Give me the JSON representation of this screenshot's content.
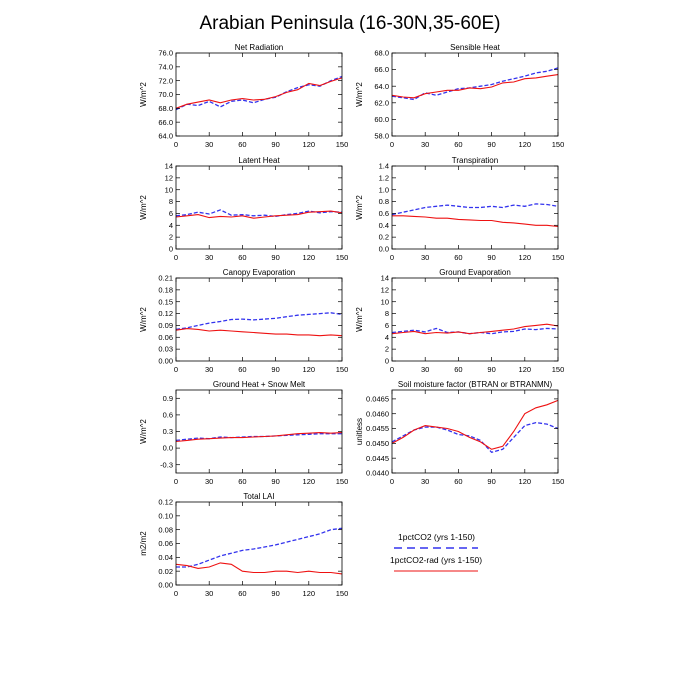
{
  "figure": {
    "title": "Arabian Peninsula (16-30N,35-60E)",
    "legend": [
      {
        "label": "1pctCO2 (yrs 1-150)",
        "color": "#3333ee",
        "dash": "dashed"
      },
      {
        "label": "1pctCO2-rad (yrs 1-150)",
        "color": "#ee1111",
        "dash": "solid"
      }
    ]
  },
  "chart_data": [
    {
      "type": "line",
      "title": "Net Radiation",
      "ylabel": "W/m^2",
      "xlim": [
        0,
        150
      ],
      "ylim": [
        64,
        76
      ],
      "xticks": [
        0,
        30,
        60,
        90,
        120,
        150
      ],
      "xticklabels": [
        "0",
        "30",
        "60",
        "90",
        "120",
        "150"
      ],
      "yticks": [
        64,
        66,
        68,
        70,
        72,
        74,
        76
      ],
      "yticklabels": [
        "64.0",
        "66.0",
        "68.0",
        "70.0",
        "72.0",
        "74.0",
        "76.0"
      ],
      "series": [
        {
          "name": "1pctCO2 (yrs 1-150)",
          "color": "#3333ee",
          "dash": "dashed",
          "x": [
            0,
            10,
            20,
            30,
            40,
            50,
            60,
            70,
            80,
            90,
            100,
            110,
            120,
            130,
            140,
            150
          ],
          "y": [
            67.8,
            68.6,
            68.4,
            69.0,
            68.2,
            69.0,
            69.2,
            68.8,
            69.3,
            69.6,
            70.4,
            71.0,
            71.4,
            71.2,
            72.0,
            72.6
          ]
        },
        {
          "name": "1pctCO2-rad (yrs 1-150)",
          "color": "#ee1111",
          "dash": "solid",
          "x": [
            0,
            10,
            20,
            30,
            40,
            50,
            60,
            70,
            80,
            90,
            100,
            110,
            120,
            130,
            140,
            150
          ],
          "y": [
            68.0,
            68.6,
            68.9,
            69.2,
            68.8,
            69.2,
            69.4,
            69.2,
            69.3,
            69.7,
            70.3,
            70.7,
            71.6,
            71.3,
            71.9,
            72.4
          ]
        }
      ]
    },
    {
      "type": "line",
      "title": "Sensible Heat",
      "ylabel": "W/m^2",
      "xlim": [
        0,
        150
      ],
      "ylim": [
        58,
        68
      ],
      "xticks": [
        0,
        30,
        60,
        90,
        120,
        150
      ],
      "xticklabels": [
        "0",
        "30",
        "60",
        "90",
        "120",
        "150"
      ],
      "yticks": [
        58,
        60,
        62,
        64,
        66,
        68
      ],
      "yticklabels": [
        "58.0",
        "60.0",
        "62.0",
        "64.0",
        "66.0",
        "68.0"
      ],
      "series": [
        {
          "name": "1pctCO2 (yrs 1-150)",
          "color": "#3333ee",
          "dash": "dashed",
          "x": [
            0,
            10,
            20,
            30,
            40,
            50,
            60,
            70,
            80,
            90,
            100,
            110,
            120,
            130,
            140,
            150
          ],
          "y": [
            62.8,
            62.6,
            62.4,
            63.2,
            62.9,
            63.3,
            63.7,
            63.8,
            64.0,
            64.2,
            64.6,
            64.9,
            65.2,
            65.6,
            65.8,
            66.2
          ]
        },
        {
          "name": "1pctCO2-rad (yrs 1-150)",
          "color": "#ee1111",
          "dash": "solid",
          "x": [
            0,
            10,
            20,
            30,
            40,
            50,
            60,
            70,
            80,
            90,
            100,
            110,
            120,
            130,
            140,
            150
          ],
          "y": [
            62.9,
            62.7,
            62.6,
            63.1,
            63.3,
            63.5,
            63.5,
            63.8,
            63.7,
            63.9,
            64.4,
            64.5,
            64.9,
            65.0,
            65.2,
            65.4
          ]
        }
      ]
    },
    {
      "type": "line",
      "title": "Latent Heat",
      "ylabel": "W/m^2",
      "xlim": [
        0,
        150
      ],
      "ylim": [
        0,
        14
      ],
      "xticks": [
        0,
        30,
        60,
        90,
        120,
        150
      ],
      "xticklabels": [
        "0",
        "30",
        "60",
        "90",
        "120",
        "150"
      ],
      "yticks": [
        0,
        2,
        4,
        6,
        8,
        10,
        12,
        14
      ],
      "yticklabels": [
        "0",
        "2",
        "4",
        "6",
        "8",
        "10",
        "12",
        "14"
      ],
      "series": [
        {
          "name": "1pctCO2 (yrs 1-150)",
          "color": "#3333ee",
          "dash": "dashed",
          "x": [
            0,
            10,
            20,
            30,
            40,
            50,
            60,
            70,
            80,
            90,
            100,
            110,
            120,
            130,
            140,
            150
          ],
          "y": [
            5.6,
            5.8,
            6.2,
            5.9,
            6.6,
            5.7,
            5.8,
            5.6,
            5.7,
            5.5,
            5.8,
            6.0,
            6.4,
            6.1,
            6.3,
            6.2
          ]
        },
        {
          "name": "1pctCO2-rad (yrs 1-150)",
          "color": "#ee1111",
          "dash": "solid",
          "x": [
            0,
            10,
            20,
            30,
            40,
            50,
            60,
            70,
            80,
            90,
            100,
            110,
            120,
            130,
            140,
            150
          ],
          "y": [
            5.4,
            5.6,
            5.8,
            5.3,
            5.5,
            5.4,
            5.6,
            5.2,
            5.4,
            5.6,
            5.7,
            5.8,
            6.2,
            6.3,
            6.4,
            6.1
          ]
        }
      ]
    },
    {
      "type": "line",
      "title": "Transpiration",
      "ylabel": "W/m^2",
      "xlim": [
        0,
        150
      ],
      "ylim": [
        0,
        1.4
      ],
      "xticks": [
        0,
        30,
        60,
        90,
        120,
        150
      ],
      "xticklabels": [
        "0",
        "30",
        "60",
        "90",
        "120",
        "150"
      ],
      "yticks": [
        0,
        0.2,
        0.4,
        0.6,
        0.8,
        1.0,
        1.2,
        1.4
      ],
      "yticklabels": [
        "0.0",
        "0.2",
        "0.4",
        "0.6",
        "0.8",
        "1.0",
        "1.2",
        "1.4"
      ],
      "series": [
        {
          "name": "1pctCO2 (yrs 1-150)",
          "color": "#3333ee",
          "dash": "dashed",
          "x": [
            0,
            10,
            20,
            30,
            40,
            50,
            60,
            70,
            80,
            90,
            100,
            110,
            120,
            130,
            140,
            150
          ],
          "y": [
            0.58,
            0.62,
            0.66,
            0.7,
            0.72,
            0.74,
            0.72,
            0.7,
            0.7,
            0.72,
            0.7,
            0.74,
            0.72,
            0.76,
            0.75,
            0.72
          ]
        },
        {
          "name": "1pctCO2-rad (yrs 1-150)",
          "color": "#ee1111",
          "dash": "solid",
          "x": [
            0,
            10,
            20,
            30,
            40,
            50,
            60,
            70,
            80,
            90,
            100,
            110,
            120,
            130,
            140,
            150
          ],
          "y": [
            0.56,
            0.56,
            0.55,
            0.54,
            0.52,
            0.52,
            0.5,
            0.49,
            0.48,
            0.48,
            0.45,
            0.44,
            0.42,
            0.4,
            0.4,
            0.38
          ]
        }
      ]
    },
    {
      "type": "line",
      "title": "Canopy Evaporation",
      "ylabel": "W/m^2",
      "xlim": [
        0,
        150
      ],
      "ylim": [
        0,
        0.21
      ],
      "xticks": [
        0,
        30,
        60,
        90,
        120,
        150
      ],
      "xticklabels": [
        "0",
        "30",
        "60",
        "90",
        "120",
        "150"
      ],
      "yticks": [
        0,
        0.03,
        0.06,
        0.09,
        0.12,
        0.15,
        0.18,
        0.21
      ],
      "yticklabels": [
        "0.00",
        "0.03",
        "0.06",
        "0.09",
        "0.12",
        "0.15",
        "0.18",
        "0.21"
      ],
      "series": [
        {
          "name": "1pctCO2 (yrs 1-150)",
          "color": "#3333ee",
          "dash": "dashed",
          "x": [
            0,
            10,
            20,
            30,
            40,
            50,
            60,
            70,
            80,
            90,
            100,
            110,
            120,
            130,
            140,
            150
          ],
          "y": [
            0.08,
            0.084,
            0.09,
            0.096,
            0.1,
            0.105,
            0.106,
            0.104,
            0.106,
            0.108,
            0.112,
            0.116,
            0.118,
            0.12,
            0.122,
            0.118
          ]
        },
        {
          "name": "1pctCO2-rad (yrs 1-150)",
          "color": "#ee1111",
          "dash": "solid",
          "x": [
            0,
            10,
            20,
            30,
            40,
            50,
            60,
            70,
            80,
            90,
            100,
            110,
            120,
            130,
            140,
            150
          ],
          "y": [
            0.078,
            0.082,
            0.08,
            0.076,
            0.078,
            0.076,
            0.074,
            0.072,
            0.07,
            0.068,
            0.068,
            0.066,
            0.066,
            0.064,
            0.066,
            0.064
          ]
        }
      ]
    },
    {
      "type": "line",
      "title": "Ground Evaporation",
      "ylabel": "W/m^2",
      "xlim": [
        0,
        150
      ],
      "ylim": [
        0,
        14
      ],
      "xticks": [
        0,
        30,
        60,
        90,
        120,
        150
      ],
      "xticklabels": [
        "0",
        "30",
        "60",
        "90",
        "120",
        "150"
      ],
      "yticks": [
        0,
        2,
        4,
        6,
        8,
        10,
        12,
        14
      ],
      "yticklabels": [
        "0",
        "2",
        "4",
        "6",
        "8",
        "10",
        "12",
        "14"
      ],
      "series": [
        {
          "name": "1pctCO2 (yrs 1-150)",
          "color": "#3333ee",
          "dash": "dashed",
          "x": [
            0,
            10,
            20,
            30,
            40,
            50,
            60,
            70,
            80,
            90,
            100,
            110,
            120,
            130,
            140,
            150
          ],
          "y": [
            4.8,
            5.0,
            5.2,
            4.9,
            5.5,
            4.8,
            4.9,
            4.6,
            4.8,
            4.6,
            4.9,
            5.0,
            5.4,
            5.3,
            5.5,
            5.4
          ]
        },
        {
          "name": "1pctCO2-rad (yrs 1-150)",
          "color": "#ee1111",
          "dash": "solid",
          "x": [
            0,
            10,
            20,
            30,
            40,
            50,
            60,
            70,
            80,
            90,
            100,
            110,
            120,
            130,
            140,
            150
          ],
          "y": [
            4.6,
            4.8,
            5.0,
            4.6,
            4.8,
            4.7,
            4.9,
            4.6,
            4.8,
            5.0,
            5.2,
            5.4,
            5.8,
            6.0,
            6.2,
            5.9
          ]
        }
      ]
    },
    {
      "type": "line",
      "title": "Ground Heat + Snow Melt",
      "ylabel": "W/m^2",
      "xlim": [
        0,
        150
      ],
      "ylim": [
        -0.45,
        1.05
      ],
      "xticks": [
        0,
        30,
        60,
        90,
        120,
        150
      ],
      "xticklabels": [
        "0",
        "30",
        "60",
        "90",
        "120",
        "150"
      ],
      "yticks": [
        -0.3,
        0,
        0.3,
        0.6,
        0.9
      ],
      "yticklabels": [
        "-0.3",
        "0.0",
        "0.3",
        "0.6",
        "0.9"
      ],
      "series": [
        {
          "name": "1pctCO2 (yrs 1-150)",
          "color": "#3333ee",
          "dash": "dashed",
          "x": [
            0,
            10,
            20,
            30,
            40,
            50,
            60,
            70,
            80,
            90,
            100,
            110,
            120,
            130,
            140,
            150
          ],
          "y": [
            0.14,
            0.16,
            0.18,
            0.17,
            0.2,
            0.19,
            0.2,
            0.21,
            0.21,
            0.22,
            0.23,
            0.24,
            0.25,
            0.26,
            0.26,
            0.26
          ]
        },
        {
          "name": "1pctCO2-rad (yrs 1-150)",
          "color": "#ee1111",
          "dash": "solid",
          "x": [
            0,
            10,
            20,
            30,
            40,
            50,
            60,
            70,
            80,
            90,
            100,
            110,
            120,
            130,
            140,
            150
          ],
          "y": [
            0.12,
            0.14,
            0.16,
            0.17,
            0.18,
            0.19,
            0.19,
            0.2,
            0.21,
            0.22,
            0.24,
            0.26,
            0.27,
            0.28,
            0.27,
            0.28
          ]
        }
      ]
    },
    {
      "type": "line",
      "title": "Soil moisture factor (BTRAN or BTRANMN)",
      "ylabel": "unitless",
      "xlim": [
        0,
        150
      ],
      "ylim": [
        0.044,
        0.0468
      ],
      "xticks": [
        0,
        30,
        60,
        90,
        120,
        150
      ],
      "xticklabels": [
        "0",
        "30",
        "60",
        "90",
        "120",
        "150"
      ],
      "yticks": [
        0.044,
        0.0445,
        0.045,
        0.0455,
        0.046,
        0.0465
      ],
      "yticklabels": [
        "0.0440",
        "0.0445",
        "0.0450",
        "0.0455",
        "0.0460",
        "0.0465"
      ],
      "series": [
        {
          "name": "1pctCO2 (yrs 1-150)",
          "color": "#3333ee",
          "dash": "dashed",
          "x": [
            0,
            10,
            20,
            30,
            40,
            50,
            60,
            70,
            80,
            90,
            100,
            110,
            120,
            130,
            140,
            150
          ],
          "y": [
            0.04505,
            0.04525,
            0.04545,
            0.04555,
            0.04555,
            0.04545,
            0.0453,
            0.04525,
            0.0451,
            0.0447,
            0.0448,
            0.0452,
            0.0456,
            0.0457,
            0.04565,
            0.0455
          ]
        },
        {
          "name": "1pctCO2-rad (yrs 1-150)",
          "color": "#ee1111",
          "dash": "solid",
          "x": [
            0,
            10,
            20,
            30,
            40,
            50,
            60,
            70,
            80,
            90,
            100,
            110,
            120,
            130,
            140,
            150
          ],
          "y": [
            0.045,
            0.0452,
            0.04545,
            0.0456,
            0.04555,
            0.0455,
            0.0454,
            0.0452,
            0.04505,
            0.0448,
            0.0449,
            0.0454,
            0.046,
            0.0462,
            0.0463,
            0.04645
          ]
        }
      ]
    },
    {
      "type": "line",
      "title": "Total LAI",
      "ylabel": "m2/m2",
      "xlim": [
        0,
        150
      ],
      "ylim": [
        0,
        0.12
      ],
      "xticks": [
        0,
        30,
        60,
        90,
        120,
        150
      ],
      "xticklabels": [
        "0",
        "30",
        "60",
        "90",
        "120",
        "150"
      ],
      "yticks": [
        0,
        0.02,
        0.04,
        0.06,
        0.08,
        0.1,
        0.12
      ],
      "yticklabels": [
        "0.00",
        "0.02",
        "0.04",
        "0.06",
        "0.08",
        "0.10",
        "0.12"
      ],
      "series": [
        {
          "name": "1pctCO2 (yrs 1-150)",
          "color": "#3333ee",
          "dash": "dashed",
          "x": [
            0,
            10,
            20,
            30,
            40,
            50,
            60,
            70,
            80,
            90,
            100,
            110,
            120,
            130,
            140,
            150
          ],
          "y": [
            0.026,
            0.026,
            0.03,
            0.036,
            0.042,
            0.046,
            0.05,
            0.052,
            0.055,
            0.058,
            0.062,
            0.066,
            0.07,
            0.074,
            0.08,
            0.082
          ]
        },
        {
          "name": "1pctCO2-rad (yrs 1-150)",
          "color": "#ee1111",
          "dash": "solid",
          "x": [
            0,
            10,
            20,
            30,
            40,
            50,
            60,
            70,
            80,
            90,
            100,
            110,
            120,
            130,
            140,
            150
          ],
          "y": [
            0.03,
            0.028,
            0.024,
            0.026,
            0.032,
            0.03,
            0.02,
            0.018,
            0.018,
            0.02,
            0.02,
            0.018,
            0.02,
            0.018,
            0.018,
            0.016
          ]
        }
      ]
    }
  ]
}
